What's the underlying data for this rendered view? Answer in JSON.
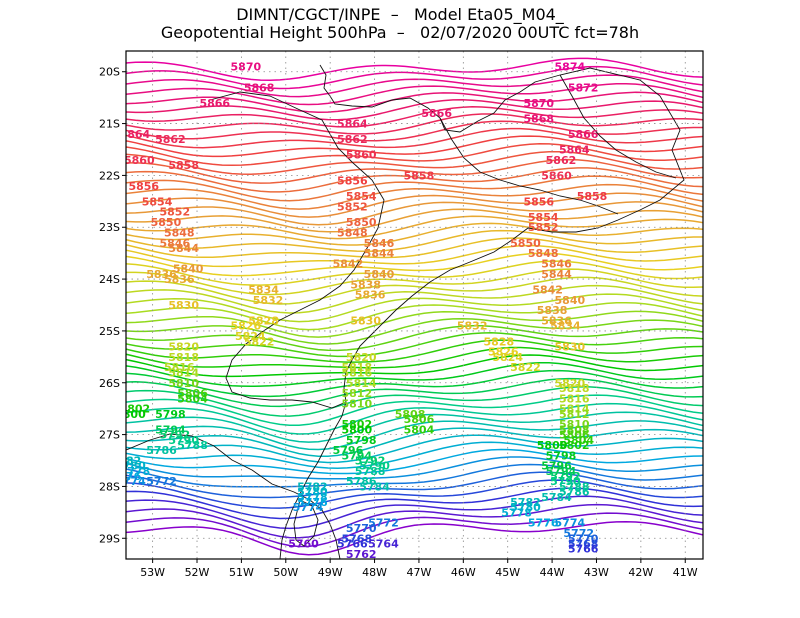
{
  "header": {
    "line1": "DIMNT/CGCT/INPE  –   Model Eta05_M04_",
    "line2": "Geopotential Height 500hPa  –   02/07/2020 00UTC fct=78h"
  },
  "map": {
    "lat_range": [
      -29.4,
      -19.6
    ],
    "lon_range": [
      -53.6,
      -40.6
    ],
    "lat_ticks": [
      "20S",
      "21S",
      "22S",
      "23S",
      "24S",
      "25S",
      "26S",
      "27S",
      "28S",
      "29S"
    ],
    "lon_ticks": [
      "53W",
      "52W",
      "51W",
      "50W",
      "49W",
      "48W",
      "47W",
      "46W",
      "45W",
      "44W",
      "43W",
      "42W",
      "41W"
    ],
    "contour_min": 5758,
    "contour_max": 5876,
    "contour_interval": 2,
    "color_scale": [
      {
        "value": 5758,
        "color": "#8800cc"
      },
      {
        "value": 5766,
        "color": "#3030d8"
      },
      {
        "value": 5776,
        "color": "#00a8e0"
      },
      {
        "value": 5790,
        "color": "#00cc88"
      },
      {
        "value": 5800,
        "color": "#00c800"
      },
      {
        "value": 5814,
        "color": "#a8dc20"
      },
      {
        "value": 5826,
        "color": "#e8d020"
      },
      {
        "value": 5840,
        "color": "#e89838"
      },
      {
        "value": 5856,
        "color": "#f04040"
      },
      {
        "value": 5866,
        "color": "#e8186c"
      },
      {
        "value": 5876,
        "color": "#e800a0"
      }
    ],
    "contour_labels": [
      {
        "text": "5870",
        "lon": -50.9,
        "lat": -19.9
      },
      {
        "text": "5874",
        "lon": -43.6,
        "lat": -19.9
      },
      {
        "text": "5868",
        "lon": -50.6,
        "lat": -20.3
      },
      {
        "text": "5872",
        "lon": -43.3,
        "lat": -20.3
      },
      {
        "text": "5866",
        "lon": -51.6,
        "lat": -20.6
      },
      {
        "text": "5866",
        "lon": -46.6,
        "lat": -20.8
      },
      {
        "text": "5870",
        "lon": -44.3,
        "lat": -20.6
      },
      {
        "text": "5868",
        "lon": -44.3,
        "lat": -20.9
      },
      {
        "text": "5864",
        "lon": -48.5,
        "lat": -21.0
      },
      {
        "text": "5864",
        "lon": -53.4,
        "lat": -21.2
      },
      {
        "text": "5862",
        "lon": -52.6,
        "lat": -21.3
      },
      {
        "text": "5862",
        "lon": -48.5,
        "lat": -21.3
      },
      {
        "text": "5866",
        "lon": -43.3,
        "lat": -21.2
      },
      {
        "text": "5864",
        "lon": -43.5,
        "lat": -21.5
      },
      {
        "text": "5860",
        "lon": -48.3,
        "lat": -21.6
      },
      {
        "text": "5860",
        "lon": -53.3,
        "lat": -21.7
      },
      {
        "text": "5862",
        "lon": -43.8,
        "lat": -21.7
      },
      {
        "text": "5858",
        "lon": -52.3,
        "lat": -21.8
      },
      {
        "text": "5860",
        "lon": -43.9,
        "lat": -22.0
      },
      {
        "text": "5858",
        "lon": -47.0,
        "lat": -22.0
      },
      {
        "text": "5856",
        "lon": -48.5,
        "lat": -22.1
      },
      {
        "text": "5856",
        "lon": -53.2,
        "lat": -22.2
      },
      {
        "text": "5854",
        "lon": -48.3,
        "lat": -22.4
      },
      {
        "text": "5854",
        "lon": -52.9,
        "lat": -22.5
      },
      {
        "text": "5858",
        "lon": -43.1,
        "lat": -22.4
      },
      {
        "text": "5856",
        "lon": -44.3,
        "lat": -22.5
      },
      {
        "text": "5852",
        "lon": -52.5,
        "lat": -22.7
      },
      {
        "text": "5852",
        "lon": -48.5,
        "lat": -22.6
      },
      {
        "text": "5854",
        "lon": -44.2,
        "lat": -22.8
      },
      {
        "text": "5850",
        "lon": -52.7,
        "lat": -22.9
      },
      {
        "text": "5850",
        "lon": -48.3,
        "lat": -22.9
      },
      {
        "text": "5852",
        "lon": -44.2,
        "lat": -23.0
      },
      {
        "text": "5848",
        "lon": -52.4,
        "lat": -23.1
      },
      {
        "text": "5848",
        "lon": -48.5,
        "lat": -23.1
      },
      {
        "text": "5850",
        "lon": -44.6,
        "lat": -23.3
      },
      {
        "text": "5846",
        "lon": -52.5,
        "lat": -23.3
      },
      {
        "text": "5846",
        "lon": -47.9,
        "lat": -23.3
      },
      {
        "text": "5844",
        "lon": -52.3,
        "lat": -23.4
      },
      {
        "text": "5844",
        "lon": -47.9,
        "lat": -23.5
      },
      {
        "text": "5848",
        "lon": -44.2,
        "lat": -23.5
      },
      {
        "text": "5842",
        "lon": -48.6,
        "lat": -23.7
      },
      {
        "text": "5846",
        "lon": -43.9,
        "lat": -23.7
      },
      {
        "text": "5840",
        "lon": -52.2,
        "lat": -23.8
      },
      {
        "text": "5840",
        "lon": -47.9,
        "lat": -23.9
      },
      {
        "text": "5844",
        "lon": -43.9,
        "lat": -23.9
      },
      {
        "text": "5836",
        "lon": -52.8,
        "lat": -23.9
      },
      {
        "text": "5836",
        "lon": -52.4,
        "lat": -24.0
      },
      {
        "text": "5838",
        "lon": -48.2,
        "lat": -24.1
      },
      {
        "text": "5842",
        "lon": -44.1,
        "lat": -24.2
      },
      {
        "text": "5834",
        "lon": -50.5,
        "lat": -24.2
      },
      {
        "text": "5836",
        "lon": -48.1,
        "lat": -24.3
      },
      {
        "text": "5832",
        "lon": -50.4,
        "lat": -24.4
      },
      {
        "text": "5840",
        "lon": -43.6,
        "lat": -24.4
      },
      {
        "text": "5830",
        "lon": -52.3,
        "lat": -24.5
      },
      {
        "text": "5838",
        "lon": -44.0,
        "lat": -24.6
      },
      {
        "text": "5828",
        "lon": -50.5,
        "lat": -24.8
      },
      {
        "text": "5836",
        "lon": -43.9,
        "lat": -24.8
      },
      {
        "text": "5830",
        "lon": -48.2,
        "lat": -24.8
      },
      {
        "text": "5832",
        "lon": -45.8,
        "lat": -24.9
      },
      {
        "text": "5834",
        "lon": -43.7,
        "lat": -24.9
      },
      {
        "text": "5826",
        "lon": -50.9,
        "lat": -24.9
      },
      {
        "text": "5824",
        "lon": -50.8,
        "lat": -25.1
      },
      {
        "text": "5828",
        "lon": -45.2,
        "lat": -25.2
      },
      {
        "text": "5822",
        "lon": -50.6,
        "lat": -25.2
      },
      {
        "text": "5826",
        "lon": -45.1,
        "lat": -25.4
      },
      {
        "text": "5830",
        "lon": -43.6,
        "lat": -25.3
      },
      {
        "text": "5820",
        "lon": -52.3,
        "lat": -25.3
      },
      {
        "text": "5818",
        "lon": -52.3,
        "lat": -25.5
      },
      {
        "text": "5824",
        "lon": -45.0,
        "lat": -25.5
      },
      {
        "text": "5820",
        "lon": -48.3,
        "lat": -25.5
      },
      {
        "text": "5822",
        "lon": -44.6,
        "lat": -25.7
      },
      {
        "text": "5816",
        "lon": -52.4,
        "lat": -25.7
      },
      {
        "text": "5818",
        "lon": -48.4,
        "lat": -25.7
      },
      {
        "text": "5814",
        "lon": -52.3,
        "lat": -25.8
      },
      {
        "text": "5816",
        "lon": -48.4,
        "lat": -25.8
      },
      {
        "text": "5810",
        "lon": -52.3,
        "lat": -26.0
      },
      {
        "text": "5814",
        "lon": -48.3,
        "lat": -26.0
      },
      {
        "text": "5820",
        "lon": -43.6,
        "lat": -26.0
      },
      {
        "text": "5806",
        "lon": -52.1,
        "lat": -26.2
      },
      {
        "text": "5812",
        "lon": -48.4,
        "lat": -26.2
      },
      {
        "text": "5818",
        "lon": -43.5,
        "lat": -26.1
      },
      {
        "text": "5804",
        "lon": -52.1,
        "lat": -26.3
      },
      {
        "text": "5810",
        "lon": -48.4,
        "lat": -26.4
      },
      {
        "text": "5816",
        "lon": -43.5,
        "lat": -26.3
      },
      {
        "text": "5802",
        "lon": -53.4,
        "lat": -26.5
      },
      {
        "text": "5814",
        "lon": -43.5,
        "lat": -26.5
      },
      {
        "text": "5800",
        "lon": -53.5,
        "lat": -26.6
      },
      {
        "text": "5812",
        "lon": -43.5,
        "lat": -26.6
      },
      {
        "text": "5798",
        "lon": -52.6,
        "lat": -26.6
      },
      {
        "text": "5808",
        "lon": -47.2,
        "lat": -26.6
      },
      {
        "text": "5806",
        "lon": -47.0,
        "lat": -26.7
      },
      {
        "text": "5810",
        "lon": -43.5,
        "lat": -26.8
      },
      {
        "text": "5802",
        "lon": -48.4,
        "lat": -26.8
      },
      {
        "text": "5804",
        "lon": -47.0,
        "lat": -26.9
      },
      {
        "text": "5808",
        "lon": -43.5,
        "lat": -26.9
      },
      {
        "text": "5794",
        "lon": -52.6,
        "lat": -26.9
      },
      {
        "text": "5800",
        "lon": -48.4,
        "lat": -26.9
      },
      {
        "text": "5806",
        "lon": -43.5,
        "lat": -27.0
      },
      {
        "text": "5792",
        "lon": -52.5,
        "lat": -27.0
      },
      {
        "text": "5798",
        "lon": -48.3,
        "lat": -27.1
      },
      {
        "text": "5804",
        "lon": -43.4,
        "lat": -27.1
      },
      {
        "text": "5790",
        "lon": -52.3,
        "lat": -27.1
      },
      {
        "text": "5802",
        "lon": -43.5,
        "lat": -27.2
      },
      {
        "text": "5788",
        "lon": -52.1,
        "lat": -27.2
      },
      {
        "text": "5796",
        "lon": -48.6,
        "lat": -27.3
      },
      {
        "text": "5800",
        "lon": -44.0,
        "lat": -27.2
      },
      {
        "text": "5786",
        "lon": -52.8,
        "lat": -27.3
      },
      {
        "text": "5794",
        "lon": -48.4,
        "lat": -27.4
      },
      {
        "text": "5798",
        "lon": -43.8,
        "lat": -27.4
      },
      {
        "text": "5782",
        "lon": -53.6,
        "lat": -27.5
      },
      {
        "text": "5792",
        "lon": -48.1,
        "lat": -27.5
      },
      {
        "text": "5796",
        "lon": -43.9,
        "lat": -27.6
      },
      {
        "text": "5780",
        "lon": -53.5,
        "lat": -27.6
      },
      {
        "text": "5790",
        "lon": -48.0,
        "lat": -27.6
      },
      {
        "text": "5794",
        "lon": -43.8,
        "lat": -27.7
      },
      {
        "text": "5778",
        "lon": -53.4,
        "lat": -27.7
      },
      {
        "text": "5788",
        "lon": -48.1,
        "lat": -27.7
      },
      {
        "text": "5792",
        "lon": -43.7,
        "lat": -27.8
      },
      {
        "text": "5776",
        "lon": -53.6,
        "lat": -27.8
      },
      {
        "text": "5786",
        "lon": -48.3,
        "lat": -27.9
      },
      {
        "text": "5790",
        "lon": -43.7,
        "lat": -27.9
      },
      {
        "text": "5774",
        "lon": -53.5,
        "lat": -27.9
      },
      {
        "text": "5784",
        "lon": -48.0,
        "lat": -28.0
      },
      {
        "text": "5788",
        "lon": -43.5,
        "lat": -28.0
      },
      {
        "text": "5772",
        "lon": -52.8,
        "lat": -27.9
      },
      {
        "text": "5782",
        "lon": -49.4,
        "lat": -28.0
      },
      {
        "text": "5786",
        "lon": -43.5,
        "lat": -28.1
      },
      {
        "text": "5780",
        "lon": -49.4,
        "lat": -28.1
      },
      {
        "text": "5784",
        "lon": -43.9,
        "lat": -28.2
      },
      {
        "text": "5778",
        "lon": -49.4,
        "lat": -28.2
      },
      {
        "text": "5782",
        "lon": -44.6,
        "lat": -28.3
      },
      {
        "text": "5776",
        "lon": -49.4,
        "lat": -28.3
      },
      {
        "text": "5780",
        "lon": -44.6,
        "lat": -28.4
      },
      {
        "text": "5774",
        "lon": -49.5,
        "lat": -28.4
      },
      {
        "text": "5778",
        "lon": -44.8,
        "lat": -28.5
      },
      {
        "text": "5772",
        "lon": -47.8,
        "lat": -28.7
      },
      {
        "text": "5776",
        "lon": -44.2,
        "lat": -28.7
      },
      {
        "text": "5770",
        "lon": -48.3,
        "lat": -28.8
      },
      {
        "text": "5774",
        "lon": -43.6,
        "lat": -28.7
      },
      {
        "text": "5772",
        "lon": -43.4,
        "lat": -28.9
      },
      {
        "text": "5768",
        "lon": -48.4,
        "lat": -29.0
      },
      {
        "text": "5770",
        "lon": -43.3,
        "lat": -29.0
      },
      {
        "text": "5766",
        "lon": -48.5,
        "lat": -29.1
      },
      {
        "text": "5764",
        "lon": -47.8,
        "lat": -29.1
      },
      {
        "text": "5768",
        "lon": -43.3,
        "lat": -29.1
      },
      {
        "text": "5760",
        "lon": -49.6,
        "lat": -29.1
      },
      {
        "text": "5762",
        "lon": -48.3,
        "lat": -29.3
      },
      {
        "text": "5766",
        "lon": -43.3,
        "lat": -29.2
      }
    ]
  }
}
